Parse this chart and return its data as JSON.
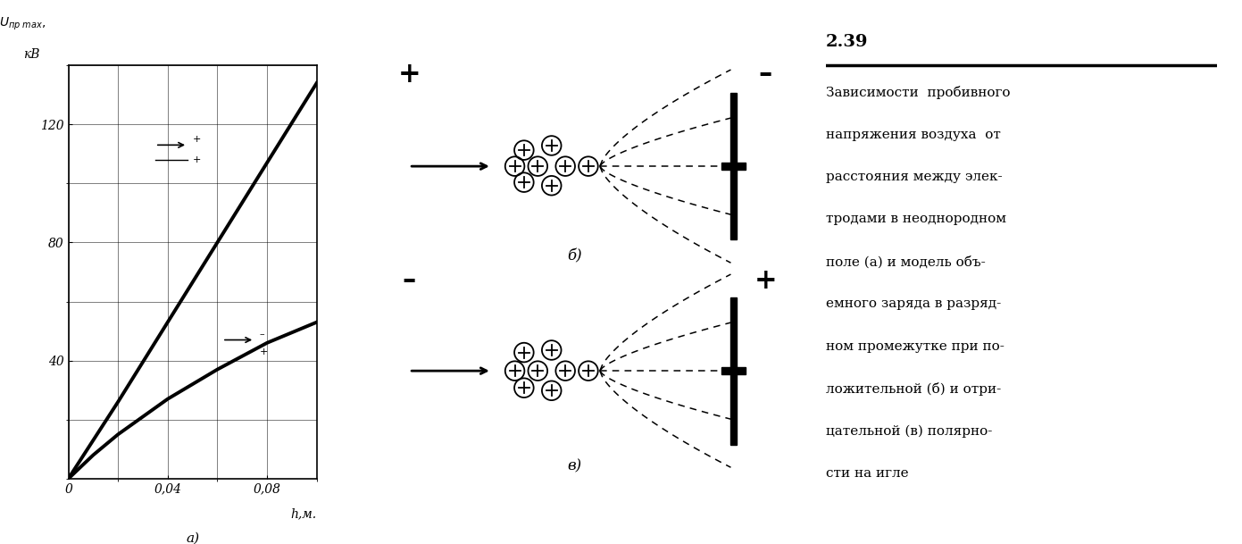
{
  "fig_width": 13.91,
  "fig_height": 6.09,
  "bg_color": "#ffffff",
  "plot_xticks": [
    0,
    0.04,
    0.08
  ],
  "plot_yticks": [
    40,
    80,
    120
  ],
  "plot_xlim": [
    0,
    0.1
  ],
  "plot_ylim": [
    0,
    140
  ],
  "line1_x": [
    0,
    0.01,
    0.02,
    0.04,
    0.06,
    0.08,
    0.1
  ],
  "line1_y": [
    0,
    13,
    26,
    53,
    80,
    107,
    134
  ],
  "line2_x": [
    0,
    0.01,
    0.02,
    0.04,
    0.06,
    0.08,
    0.1
  ],
  "line2_y": [
    0,
    8,
    15,
    27,
    37,
    46,
    53
  ],
  "caption_lines": [
    "Зависимости  пробивного",
    "напряжения воздуха  от",
    "расстояния между элек-",
    "тродами в неоднородном",
    "поле (а) и модель объ-",
    "емного заряда в разряд-",
    "ном промежутке при по-",
    "ложительной (б) и отри-",
    "цательной (в) полярно-",
    "сти на игле"
  ]
}
